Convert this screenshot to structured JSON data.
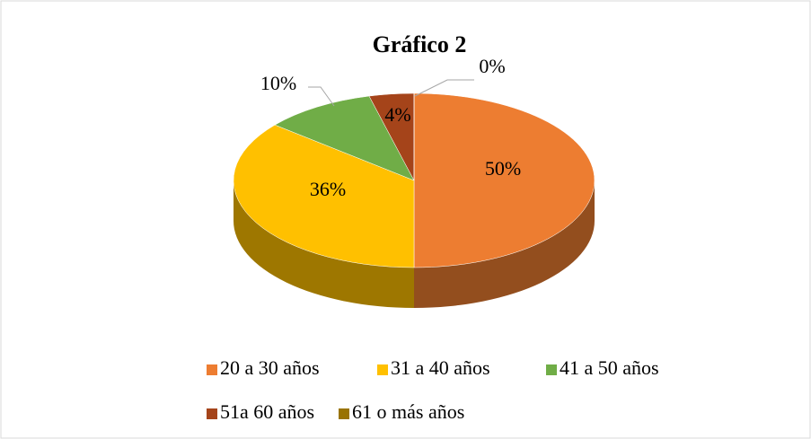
{
  "chart_data": {
    "type": "pie",
    "title": "Gráfico 2",
    "categories": [
      "20 a 30 años",
      "31 a 40 años",
      "41 a 50 años",
      "51a 60 años",
      "61 o más años"
    ],
    "values": [
      50,
      36,
      10,
      4,
      0
    ],
    "value_labels": [
      "50%",
      "36%",
      "10%",
      "4%",
      "0%"
    ],
    "colors": [
      "#ED7D31",
      "#FFC000",
      "#70AD47",
      "#A5441A",
      "#997300"
    ],
    "legend": "bottom"
  }
}
